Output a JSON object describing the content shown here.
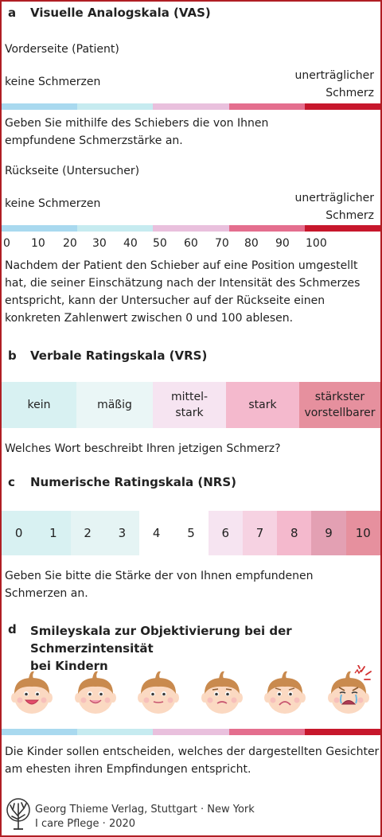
{
  "section_a": {
    "letter": "a",
    "title": "Visuelle Analogskala (VAS)",
    "front_label": "Vorderseite (Patient)",
    "left_label": "keine Schmerzen",
    "right_label_1": "unerträglicher",
    "right_label_2": "Schmerz",
    "front_text_1": "Geben Sie mithilfe des Schiebers die von Ihnen",
    "front_text_2": "empfundene Schmerzstärke an.",
    "back_label": "Rückseite (Untersucher)",
    "ticks": [
      "0",
      "10",
      "20",
      "30",
      "40",
      "50",
      "60",
      "70",
      "80",
      "90",
      "100"
    ],
    "back_text_1": "Nachdem der Patient den Schieber auf eine Position umgestellt",
    "back_text_2": "hat, die seiner Einschätzung nach der Intensität des Schmerzes",
    "back_text_3": "entspricht, kann der Untersucher auf der Rückseite einen",
    "back_text_4": "konkreten Zahlenwert zwischen 0 und 100 ablesen."
  },
  "scale_colors": [
    "#a9d9ef",
    "#c6ebf0",
    "#e9c0dd",
    "#e46e8e",
    "#c7172c"
  ],
  "section_b": {
    "letter": "b",
    "title": "Verbale Ratingskala (VRS)",
    "cells": [
      {
        "l1": "kein",
        "l2": "",
        "color": "#d8f1f2"
      },
      {
        "l1": "mäßig",
        "l2": "",
        "color": "#eaf6f6"
      },
      {
        "l1": "mittel-",
        "l2": "stark",
        "color": "#f6e4f1"
      },
      {
        "l1": "stark",
        "l2": "",
        "color": "#f4b9cd"
      },
      {
        "l1": "stärkster",
        "l2": "vorstellbarer",
        "color": "#e6909e"
      }
    ],
    "question": "Welches Wort beschreibt Ihren jetzigen Schmerz?"
  },
  "section_c": {
    "letter": "c",
    "title": "Numerische Ratingskala (NRS)",
    "cells": [
      {
        "n": "0",
        "color": "#d8f1f2"
      },
      {
        "n": "1",
        "color": "#d8f1f2"
      },
      {
        "n": "2",
        "color": "#e5f4f4"
      },
      {
        "n": "3",
        "color": "#e5f4f4"
      },
      {
        "n": "4",
        "color": "#ffffff"
      },
      {
        "n": "5",
        "color": "#ffffff"
      },
      {
        "n": "6",
        "color": "#f6e4f1"
      },
      {
        "n": "7",
        "color": "#f6d2e2"
      },
      {
        "n": "8",
        "color": "#f4b9cd"
      },
      {
        "n": "9",
        "color": "#e3a0b3"
      },
      {
        "n": "10",
        "color": "#e6909e"
      }
    ],
    "text_1": "Geben Sie bitte die Stärke der von Ihnen empfundenen",
    "text_2": "Schmerzen an."
  },
  "section_d": {
    "letter": "d",
    "title_1": "Smileyskala zur Objektivierung bei der Schmerzintensität",
    "title_2": "bei Kindern",
    "faces": [
      "laughing-face-icon",
      "smiling-face-icon",
      "neutral-face-icon",
      "frowning-face-icon",
      "sad-face-icon",
      "crying-face-icon"
    ],
    "text_1": "Die Kinder sollen entscheiden, welches der dargestellten Gesichter",
    "text_2": "am ehesten ihren Empfindungen entspricht."
  },
  "footer": {
    "line_1": "Georg Thieme Verlag, Stuttgart · New York",
    "line_2": "I care Pflege · 2020"
  }
}
